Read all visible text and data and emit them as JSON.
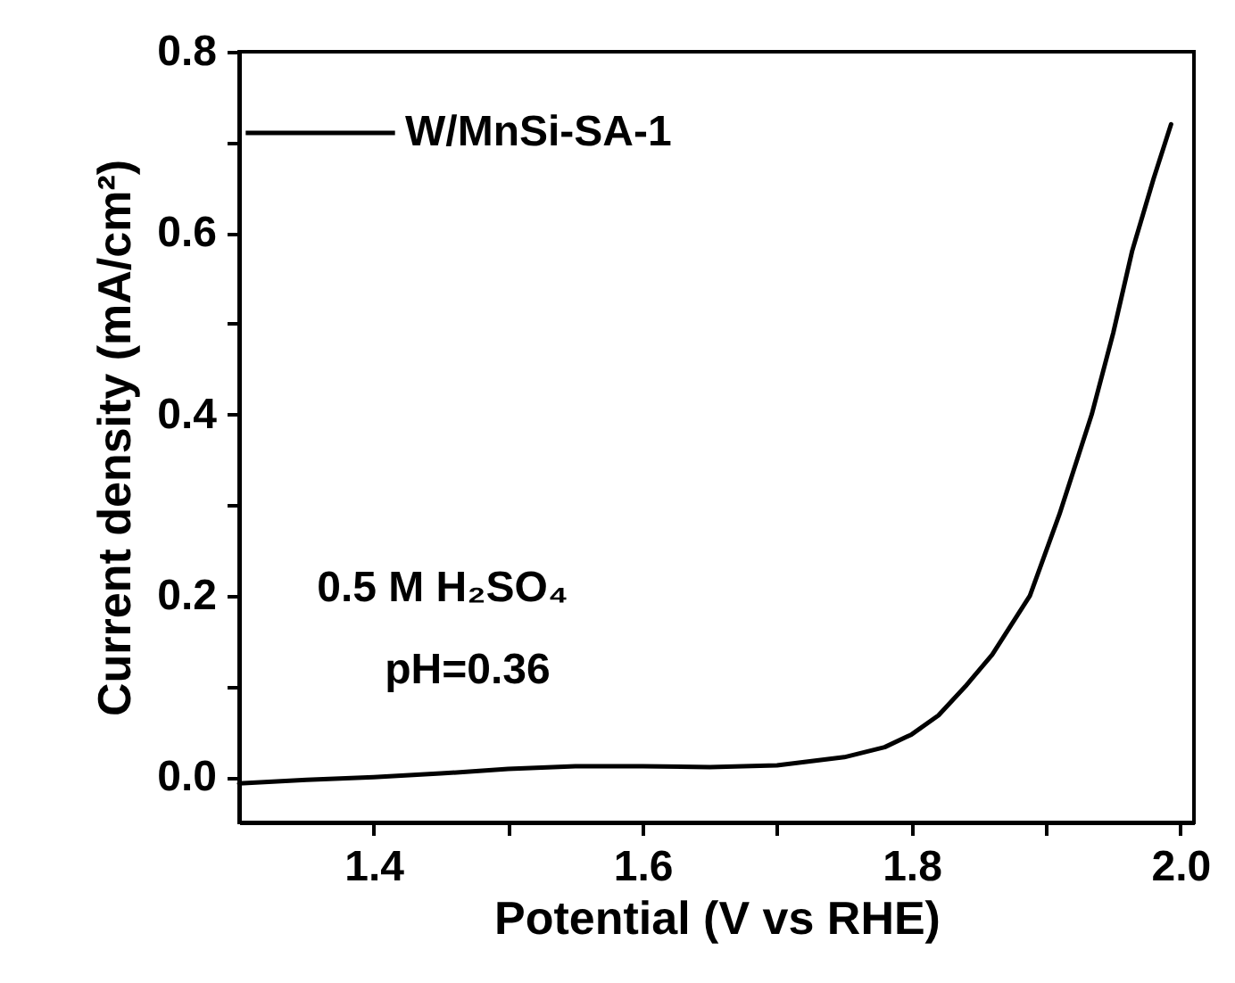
{
  "chart_data": {
    "type": "line",
    "xlabel": "Potential (V vs RHE)",
    "ylabel": "Current density (mA/cm²)",
    "x": [
      1.3,
      1.35,
      1.4,
      1.45,
      1.5,
      1.55,
      1.6,
      1.65,
      1.7,
      1.75,
      1.78,
      1.8,
      1.82,
      1.84,
      1.86,
      1.888,
      1.91,
      1.934,
      1.95,
      1.964,
      1.98,
      1.993
    ],
    "series": [
      {
        "name": "W/MnSi-SA-1",
        "color": "#000000",
        "values": [
          -0.007,
          -0.003,
          0.0,
          0.004,
          0.009,
          0.012,
          0.012,
          0.011,
          0.013,
          0.022,
          0.033,
          0.047,
          0.068,
          0.1,
          0.135,
          0.2,
          0.29,
          0.4,
          0.49,
          0.58,
          0.66,
          0.72
        ]
      }
    ],
    "xlim": [
      1.3,
      2.01
    ],
    "ylim": [
      -0.05,
      0.8
    ],
    "xticks": [
      {
        "value": 1.4,
        "label": "1.4"
      },
      {
        "value": 1.5,
        "label": null
      },
      {
        "value": 1.6,
        "label": "1.6"
      },
      {
        "value": 1.7,
        "label": null
      },
      {
        "value": 1.8,
        "label": "1.8"
      },
      {
        "value": 1.9,
        "label": null
      },
      {
        "value": 2.0,
        "label": "2.0"
      }
    ],
    "yticks": [
      {
        "value": 0,
        "label": "0.0"
      },
      {
        "value": 0.1,
        "label": null
      },
      {
        "value": 0.2,
        "label": "0.2"
      },
      {
        "value": 0.3,
        "label": null
      },
      {
        "value": 0.4,
        "label": "0.4"
      },
      {
        "value": 0.5,
        "label": null
      },
      {
        "value": 0.6,
        "label": "0.6"
      },
      {
        "value": 0.7,
        "label": null
      },
      {
        "value": 0.8,
        "label": "0.8"
      }
    ],
    "annotations": [
      "0.5 M H₂SO₄",
      "pH=0.36"
    ],
    "legend": "top left",
    "grid": false
  }
}
